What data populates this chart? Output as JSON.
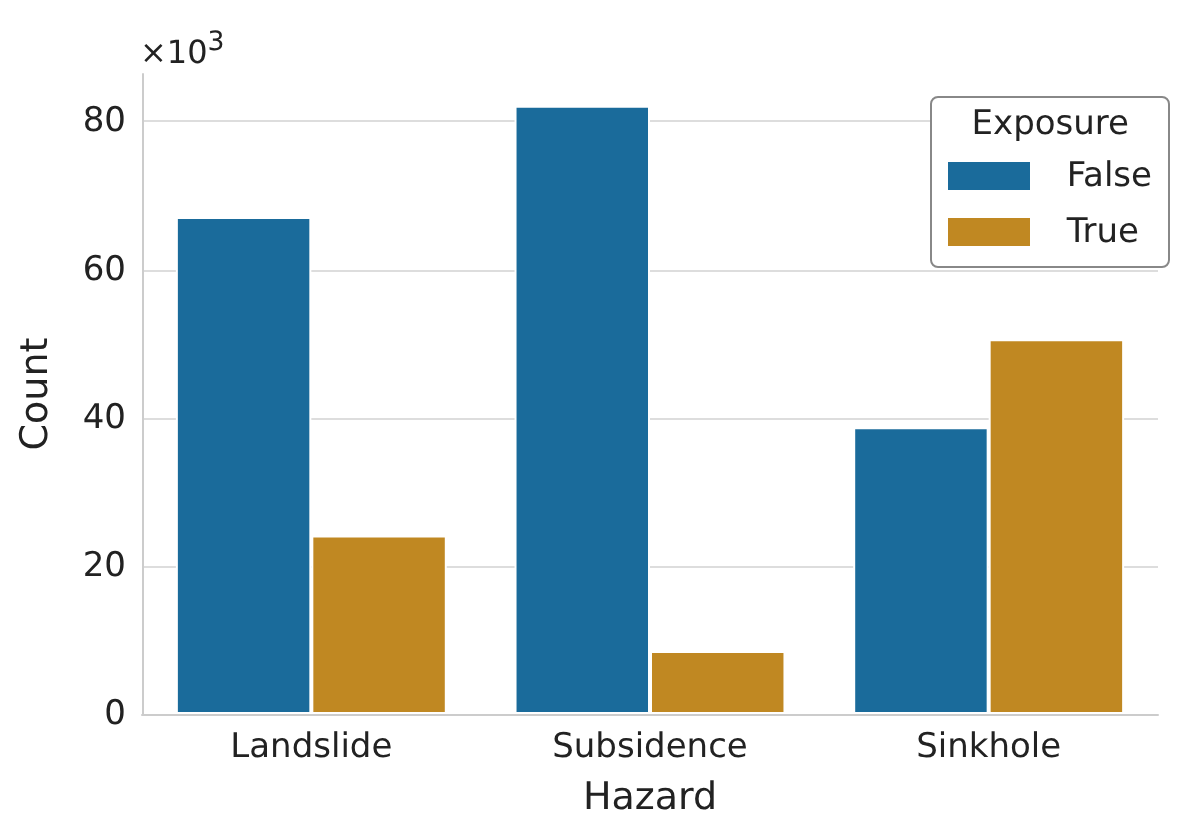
{
  "chart_data": {
    "type": "bar",
    "xlabel": "Hazard",
    "ylabel": "Count",
    "legend_title": "Exposure",
    "annotations": [
      "×10$^{3}$"
    ],
    "categories": [
      "Landslide",
      "Subsidence",
      "Sinkhole"
    ],
    "series": [
      {
        "name": "False",
        "color": "#1a6b9b",
        "values": [
          67.1,
          82.1,
          38.7
        ]
      },
      {
        "name": "True",
        "color": "#c08822",
        "values": [
          24.1,
          8.5,
          50.6
        ]
      }
    ],
    "ylim": [
      0,
      86.4
    ],
    "yticks": [
      0,
      20,
      40,
      60,
      80
    ],
    "grid": "y",
    "legend": "top right"
  }
}
